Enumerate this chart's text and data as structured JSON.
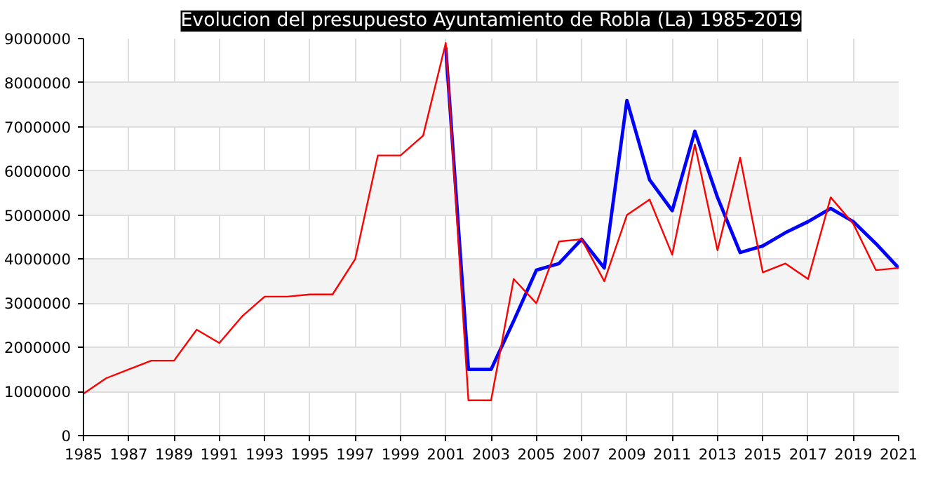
{
  "chart_data": {
    "type": "line",
    "title": "Evolucion del presupuesto Ayuntamiento de Robla (La) 1985-2019",
    "x": [
      1985,
      1986,
      1987,
      1988,
      1989,
      1990,
      1991,
      1992,
      1993,
      1994,
      1995,
      1996,
      1997,
      1998,
      1999,
      2000,
      2001,
      2002,
      2003,
      2004,
      2005,
      2006,
      2007,
      2008,
      2009,
      2010,
      2011,
      2012,
      2013,
      2014,
      2015,
      2016,
      2017,
      2018,
      2019,
      2020,
      2021
    ],
    "series": [
      {
        "color": "#0000ff",
        "values": [
          null,
          null,
          null,
          null,
          null,
          null,
          null,
          null,
          null,
          null,
          null,
          null,
          null,
          null,
          null,
          null,
          8800000,
          1500000,
          1500000,
          2600000,
          3750000,
          3900000,
          4450000,
          3800000,
          7600000,
          5800000,
          5100000,
          6900000,
          5400000,
          4150000,
          4300000,
          4600000,
          4850000,
          5150000,
          4850000,
          4350000,
          3800000
        ]
      },
      {
        "color": "#ff0000",
        "values": [
          950000,
          1300000,
          1500000,
          1700000,
          1700000,
          2400000,
          2100000,
          2700000,
          3150000,
          3150000,
          3200000,
          3200000,
          4000000,
          6350000,
          6350000,
          6800000,
          8900000,
          800000,
          800000,
          3550000,
          3000000,
          4400000,
          4450000,
          3500000,
          5000000,
          5350000,
          4100000,
          6600000,
          4200000,
          6300000,
          3700000,
          3900000,
          3550000,
          5400000,
          4800000,
          3750000,
          3800000
        ]
      }
    ],
    "xlim": [
      1985,
      2021
    ],
    "xticks": [
      1985,
      1987,
      1989,
      1991,
      1993,
      1995,
      1997,
      1999,
      2001,
      2003,
      2005,
      2007,
      2009,
      2011,
      2013,
      2015,
      2017,
      2019,
      2021
    ],
    "ylim": [
      0,
      9000000
    ],
    "yticks": [
      0,
      1000000,
      2000000,
      3000000,
      4000000,
      5000000,
      6000000,
      7000000,
      8000000,
      9000000
    ],
    "grid": true,
    "marker": "none",
    "line_style": "solid"
  }
}
